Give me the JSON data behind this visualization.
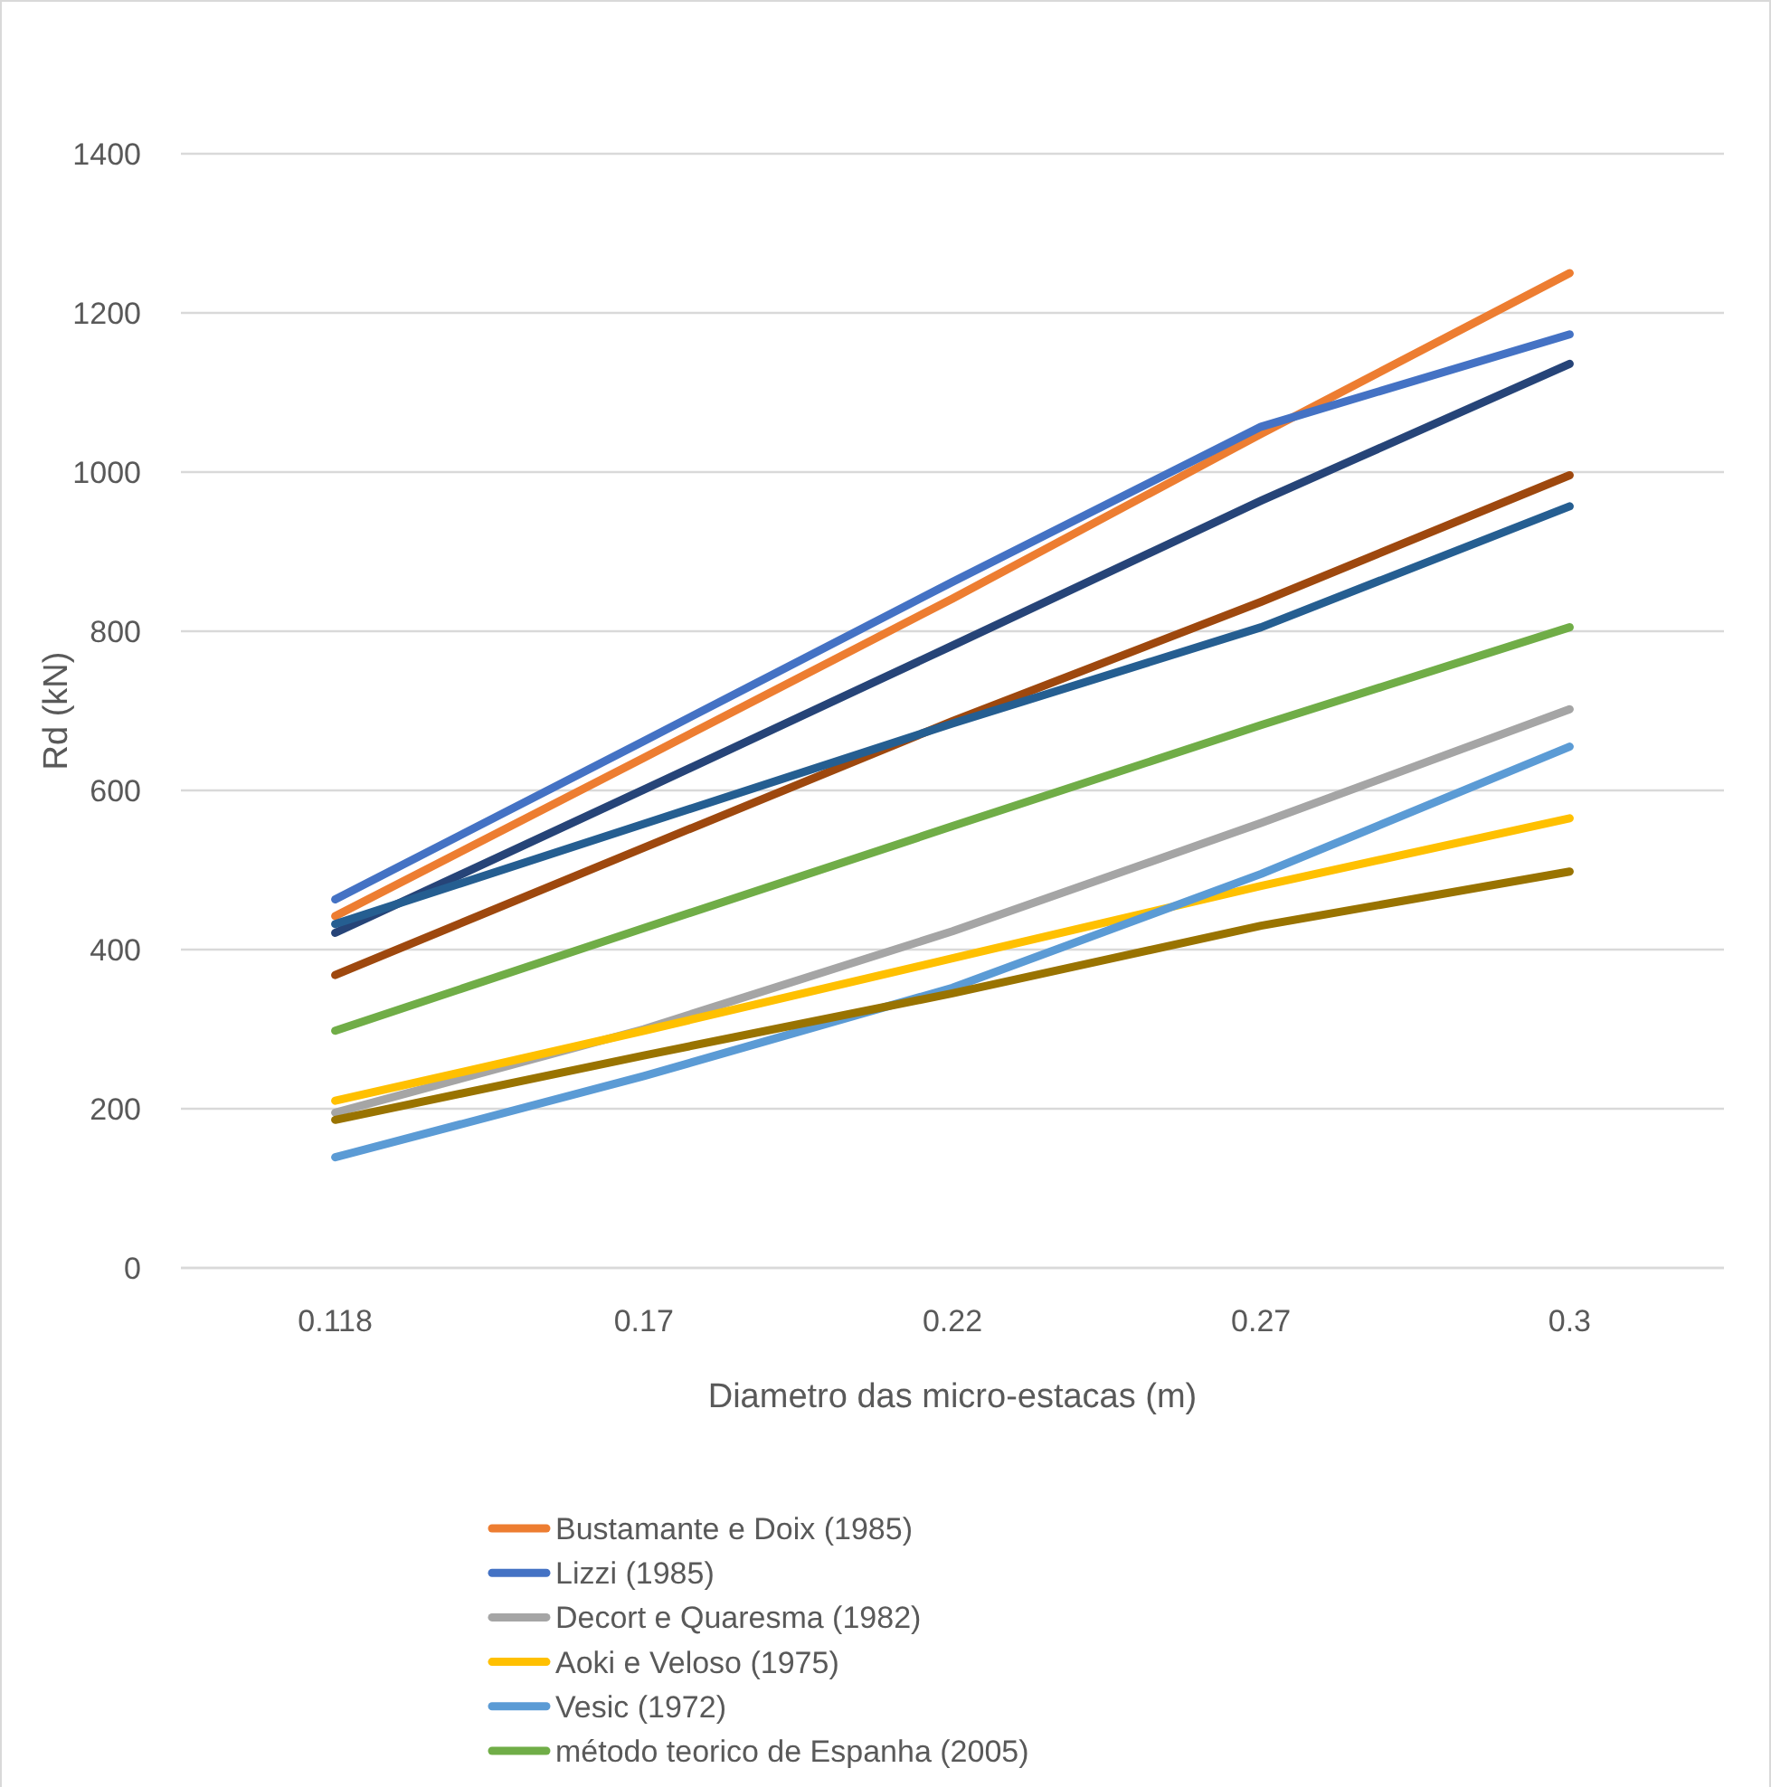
{
  "chart_data": {
    "type": "line",
    "xlabel": "Diametro das micro-estacas (m)",
    "ylabel": "Rd (kN)",
    "categories": [
      "0.118",
      "0.17",
      "0.22",
      "0.27",
      "0.3"
    ],
    "ylim": [
      0,
      1400
    ],
    "yticks": [
      0,
      200,
      400,
      600,
      800,
      1000,
      1200,
      1400
    ],
    "grid": "y",
    "legend": "bottom",
    "marker": "none",
    "line_style": "solid",
    "series": [
      {
        "name": "Bustamante e Doix (1985)",
        "color": "#ed7d31",
        "values": [
          442,
          641,
          841,
          1048,
          1250
        ]
      },
      {
        "name": "Lizzi (1985)",
        "color": "#4472c4",
        "values": [
          463,
          662,
          862,
          1057,
          1173
        ]
      },
      {
        "name": "Decort e Quaresma (1982)",
        "color": "#a5a5a5",
        "values": [
          195,
          300,
          423,
          559,
          702
        ]
      },
      {
        "name": "Aoki e Veloso (1975)",
        "color": "#ffc000",
        "values": [
          210,
          298,
          389,
          480,
          565
        ]
      },
      {
        "name": "Vesic (1972)",
        "color": "#5b9bd5",
        "values": [
          139,
          241,
          352,
          495,
          655
        ]
      },
      {
        "name": "método teorico de Espanha (2005)",
        "color": "#70ad47",
        "values": [
          298,
          427,
          555,
          682,
          805
        ]
      },
      {
        "color": "#264478",
        "values": [
          421,
          601,
          782,
          964,
          1136
        ]
      },
      {
        "color": "#9e480e",
        "values": [
          368,
          528,
          687,
          837,
          996
        ]
      },
      {
        "color": "#255e91",
        "values": [
          432,
          558,
          684,
          805,
          957
        ]
      },
      {
        "color": "#997300",
        "values": [
          186,
          267,
          345,
          430,
          498
        ]
      }
    ]
  }
}
